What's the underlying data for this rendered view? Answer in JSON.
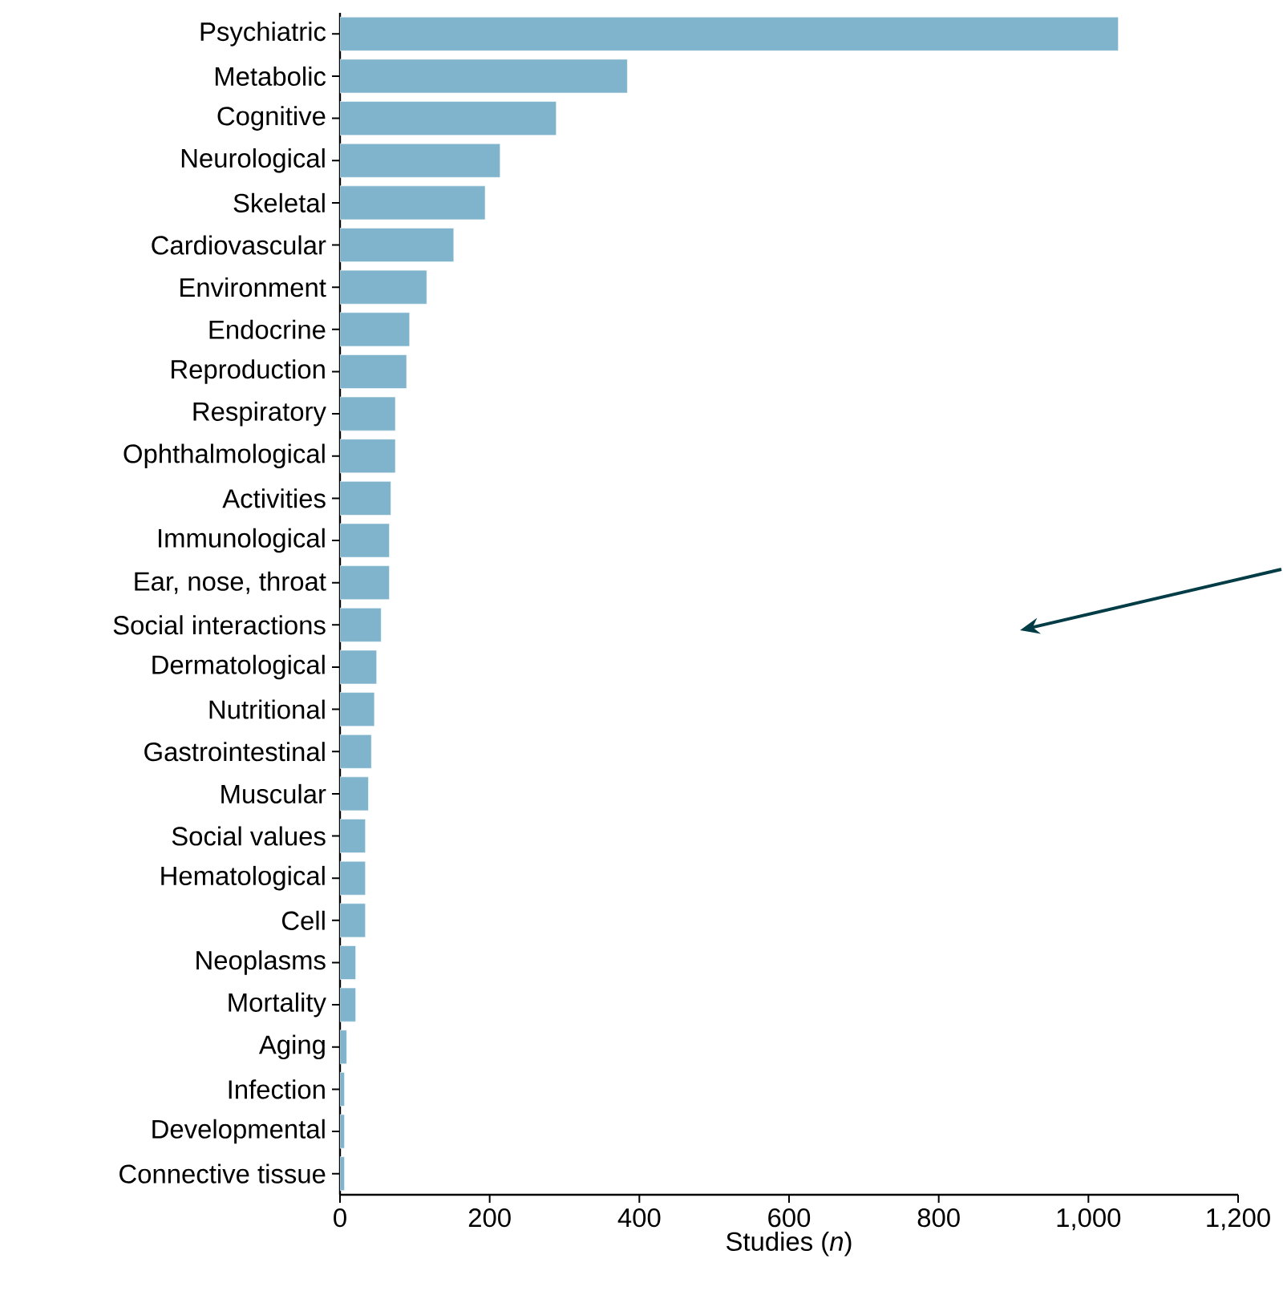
{
  "chart_data": {
    "type": "bar",
    "orientation": "horizontal",
    "xlabel": "Studies (*n*)",
    "color": "#7fb4cc",
    "categories": [
      "Psychiatric",
      "Metabolic",
      "Cognitive",
      "Neurological",
      "Skeletal",
      "Cardiovascular",
      "Environment",
      "Endocrine",
      "Reproduction",
      "Respiratory",
      "Ophthalmological",
      "Activities",
      "Immunological",
      "Ear, nose, throat",
      "Social interactions",
      "Dermatological",
      "Nutritional",
      "Gastrointestinal",
      "Muscular",
      "Social values",
      "Hematological",
      "Cell",
      "Neoplasms",
      "Mortality",
      "Aging",
      "Infection",
      "Developmental",
      "Connective tissue"
    ],
    "values": [
      1040,
      384,
      289,
      214,
      194,
      152,
      116,
      93,
      89,
      74,
      74,
      68,
      66,
      66,
      55,
      49,
      46,
      42,
      38,
      34,
      34,
      34,
      21,
      21,
      9,
      6,
      6,
      6
    ],
    "xlim": [
      0,
      1200
    ],
    "xticks": [
      0,
      200,
      400,
      600,
      800,
      {
        "value": 1000,
        "label": "1,000"
      },
      {
        "value": 1200,
        "label": "1,200"
      }
    ]
  }
}
